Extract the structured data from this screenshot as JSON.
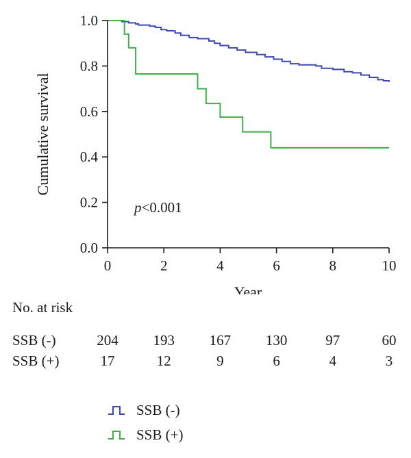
{
  "chart_data": {
    "type": "line",
    "step": true,
    "xlabel": "Year",
    "ylabel": "Cumulative survival",
    "xlim": [
      0,
      10
    ],
    "ylim": [
      0,
      1
    ],
    "xticks": [
      0,
      2,
      4,
      6,
      8,
      10
    ],
    "yticks": [
      "0.0",
      "0.2",
      "0.4",
      "0.6",
      "0.8",
      "1.0"
    ],
    "annotation": "p<0.001",
    "grid": false,
    "legend_position": "bottom",
    "series": [
      {
        "name": "SSB (-)",
        "color": "#3f48b0",
        "points": [
          [
            0,
            1.0
          ],
          [
            0.45,
            1.0
          ],
          [
            0.5,
            0.995
          ],
          [
            0.75,
            0.99
          ],
          [
            1.0,
            0.985
          ],
          [
            1.1,
            0.98
          ],
          [
            1.5,
            0.975
          ],
          [
            1.7,
            0.97
          ],
          [
            1.9,
            0.96
          ],
          [
            2.1,
            0.955
          ],
          [
            2.4,
            0.945
          ],
          [
            2.6,
            0.935
          ],
          [
            2.9,
            0.925
          ],
          [
            3.2,
            0.92
          ],
          [
            3.6,
            0.91
          ],
          [
            3.8,
            0.9
          ],
          [
            4.0,
            0.89
          ],
          [
            4.3,
            0.88
          ],
          [
            4.6,
            0.87
          ],
          [
            4.9,
            0.86
          ],
          [
            5.3,
            0.85
          ],
          [
            5.6,
            0.84
          ],
          [
            5.9,
            0.83
          ],
          [
            6.2,
            0.82
          ],
          [
            6.5,
            0.81
          ],
          [
            6.8,
            0.805
          ],
          [
            7.4,
            0.8
          ],
          [
            7.6,
            0.79
          ],
          [
            8.0,
            0.785
          ],
          [
            8.4,
            0.775
          ],
          [
            8.7,
            0.77
          ],
          [
            9.0,
            0.76
          ],
          [
            9.3,
            0.75
          ],
          [
            9.6,
            0.74
          ],
          [
            9.8,
            0.735
          ],
          [
            10.0,
            0.73
          ]
        ]
      },
      {
        "name": "SSB (+)",
        "color": "#3fae49",
        "points": [
          [
            0,
            1.0
          ],
          [
            0.6,
            1.0
          ],
          [
            0.6,
            0.94
          ],
          [
            0.75,
            0.94
          ],
          [
            0.75,
            0.88
          ],
          [
            1.0,
            0.88
          ],
          [
            1.0,
            0.765
          ],
          [
            3.2,
            0.765
          ],
          [
            3.2,
            0.7
          ],
          [
            3.5,
            0.7
          ],
          [
            3.5,
            0.635
          ],
          [
            4.0,
            0.635
          ],
          [
            4.0,
            0.575
          ],
          [
            4.8,
            0.575
          ],
          [
            4.8,
            0.51
          ],
          [
            5.8,
            0.51
          ],
          [
            5.8,
            0.44
          ],
          [
            10.0,
            0.44
          ]
        ]
      }
    ]
  },
  "risk_table": {
    "title": "No. at risk",
    "times": [
      0,
      2,
      4,
      6,
      8,
      10
    ],
    "rows": [
      {
        "label": "SSB (-)",
        "values": [
          "204",
          "193",
          "167",
          "130",
          "97",
          "60"
        ]
      },
      {
        "label": "SSB (+)",
        "values": [
          "17",
          "12",
          "9",
          "6",
          "4",
          "3"
        ]
      }
    ]
  },
  "legend": {
    "items": [
      {
        "label": "SSB (-)",
        "color": "#3f48b0"
      },
      {
        "label": "SSB (+)",
        "color": "#3fae49"
      }
    ]
  }
}
